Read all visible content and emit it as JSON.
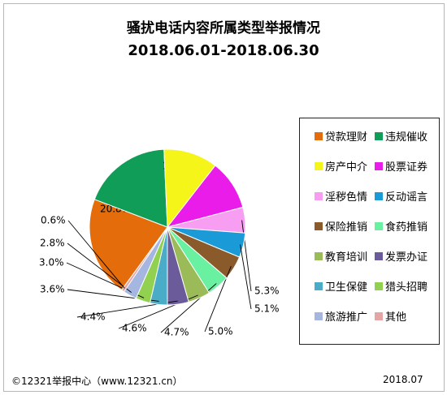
{
  "chart_data": {
    "type": "pie",
    "title": "骚扰电话内容所属类型举报情况",
    "subtitle": "2018.06.01-2018.06.30",
    "slices": [
      {
        "label": "贷款理财",
        "value": 20.8,
        "display": "20.8%",
        "color": "#e46c0a"
      },
      {
        "label": "违规催收",
        "value": 18.5,
        "display": "18.5%",
        "color": "#0f9d58"
      },
      {
        "label": "房产中介",
        "value": 11.2,
        "display": "11.2%",
        "color": "#f5f51a"
      },
      {
        "label": "股票证券",
        "value": 10.4,
        "display": "10.4%",
        "color": "#ea1cea"
      },
      {
        "label": "淫秽色情",
        "value": 5.3,
        "display": "5.3%",
        "color": "#f79ef3"
      },
      {
        "label": "反动谣言",
        "value": 5.1,
        "display": "5.1%",
        "color": "#1a9ad6"
      },
      {
        "label": "保险推销",
        "value": 5.0,
        "display": "5.0%",
        "color": "#8b5a2b"
      },
      {
        "label": "食药推销",
        "value": 4.7,
        "display": "4.7%",
        "color": "#69f0a0"
      },
      {
        "label": "教育培训",
        "value": 4.6,
        "display": "4.6%",
        "color": "#9bbb59"
      },
      {
        "label": "发票办证",
        "value": 4.4,
        "display": "4.4%",
        "color": "#6b5b9a"
      },
      {
        "label": "卫生保健",
        "value": 3.6,
        "display": "3.6%",
        "color": "#4aacc6"
      },
      {
        "label": "猎头招聘",
        "value": 3.0,
        "display": "3.0%",
        "color": "#92d050"
      },
      {
        "label": "旅游推广",
        "value": 2.8,
        "display": "2.8%",
        "color": "#a5b6e0"
      },
      {
        "label": "其他",
        "value": 0.6,
        "display": "0.6%",
        "color": "#e6a5a5"
      }
    ],
    "legend_placement": "right"
  },
  "footer": {
    "source": "©12321举报中心（www.12321.cn）",
    "date": "2018.07"
  }
}
